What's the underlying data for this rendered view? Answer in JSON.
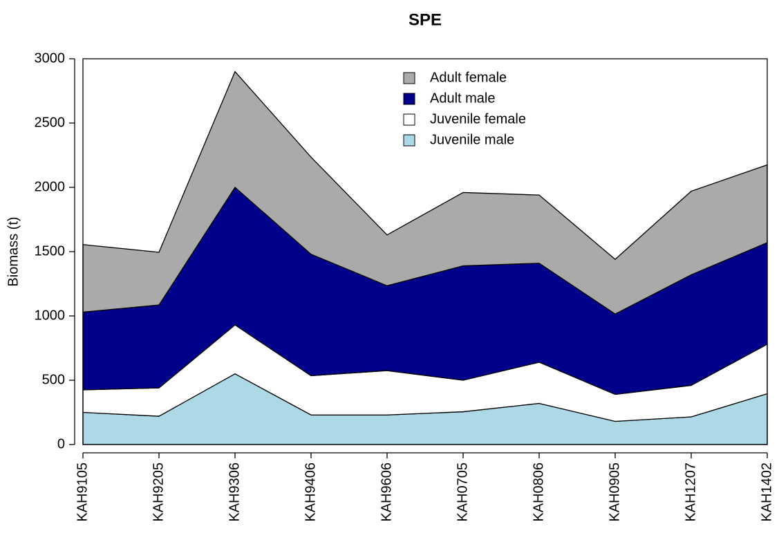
{
  "chart_data": {
    "type": "stacked-area",
    "title": "SPE",
    "y_label": "Biomass (t)",
    "categories": [
      "KAH9105",
      "KAH9205",
      "KAH9306",
      "KAH9406",
      "KAH9606",
      "KAH0705",
      "KAH0806",
      "KAH0905",
      "KAH1207",
      "KAH1402"
    ],
    "series": [
      {
        "name": "Adult female",
        "color": "#aaaaaa",
        "values": [
          525,
          410,
          900,
          755,
          395,
          570,
          530,
          425,
          650,
          605
        ]
      },
      {
        "name": "Adult male",
        "color": "#00008b",
        "values": [
          605,
          645,
          1070,
          945,
          660,
          890,
          770,
          625,
          860,
          790
        ]
      },
      {
        "name": "Juvenile female",
        "color": "#ffffff",
        "values": [
          175,
          220,
          380,
          305,
          345,
          245,
          320,
          210,
          245,
          385
        ]
      },
      {
        "name": "Juvenile male",
        "color": "#add8e6",
        "values": [
          250,
          220,
          550,
          230,
          230,
          255,
          320,
          180,
          215,
          395
        ]
      }
    ],
    "ylim": [
      0,
      3000
    ],
    "yticks": [
      0,
      500,
      1000,
      1500,
      2000,
      2500,
      3000
    ],
    "legend": "top-center"
  }
}
